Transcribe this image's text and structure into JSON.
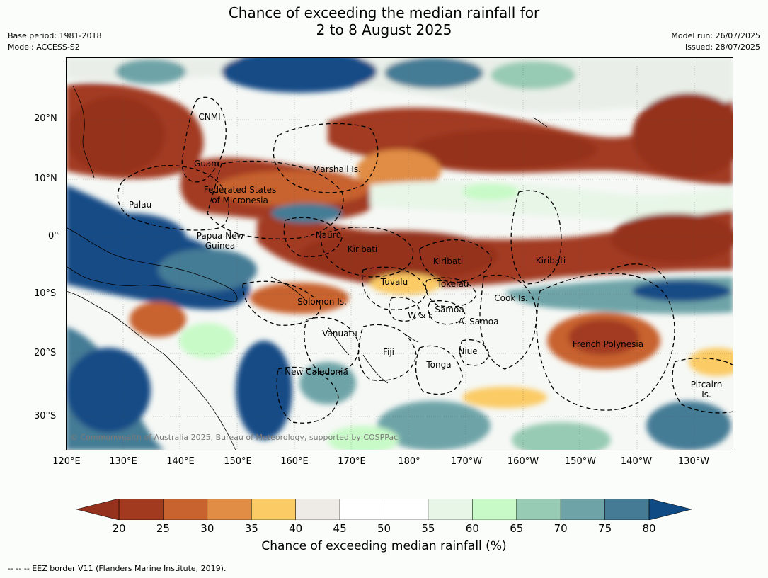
{
  "title_line1": "Chance of exceeding the median rainfall for",
  "title_line2": "2 to 8 August 2025",
  "meta_left": {
    "base_period": "Base period: 1981-2018",
    "model": "Model: ACCESS-S2"
  },
  "meta_right": {
    "model_run": "Model run: 26/07/2025",
    "issued": "Issued: 28/07/2025"
  },
  "lat_ticks": [
    "20°N",
    "10°N",
    "0°",
    "10°S",
    "20°S",
    "30°S"
  ],
  "lon_ticks": [
    "120°E",
    "130°E",
    "140°E",
    "150°E",
    "160°E",
    "170°E",
    "180°",
    "170°W",
    "160°W",
    "150°W",
    "140°W",
    "130°W"
  ],
  "regions": {
    "cnmi": "CNMI",
    "guam": "Guam",
    "marshall": "Marshall Is.",
    "fsm_line1": "Federated States",
    "fsm_line2": "of Micronesia",
    "palau": "Palau",
    "png_line1": "Papua New",
    "png_line2": "Guinea",
    "nauru": "Nauru",
    "kiribati_west": "Kiribati",
    "kiribati_central": "Kiribati",
    "kiribati_east": "Kiribati",
    "tuvalu": "Tuvalu",
    "tokelau": "Tokelau",
    "cook": "Cook Is.",
    "solomon": "Solomon Is.",
    "wf": "W & F",
    "samoa": "Samoa",
    "asamoa": "A. Samoa",
    "vanuatu": "Vanuatu",
    "fiji": "Fiji",
    "niue": "Niue",
    "tonga": "Tonga",
    "french_polynesia": "French Polynesia",
    "new_caledonia": "New Caledonia",
    "pitcairn_line1": "Pitcairn",
    "pitcairn_line2": "Is."
  },
  "copyright": "© Commonwealth of Australia 2025, Bureau of Meteorology, supported by COSPPac",
  "colorbar": {
    "ticks": [
      "20",
      "25",
      "30",
      "35",
      "40",
      "45",
      "50",
      "55",
      "60",
      "65",
      "70",
      "75",
      "80"
    ],
    "colors": [
      "#a23a20",
      "#c8622f",
      "#e18d45",
      "#fbcb65",
      "#eeebe6",
      "#ffffff",
      "#ffffff",
      "#e8f6e8",
      "#c8fac7",
      "#98cbb3",
      "#6ea4a8",
      "#457b95",
      "#134c86"
    ],
    "low_color": "#95321e",
    "high_color": "#0f4a84",
    "label": "Chance of exceeding median rainfall (%)"
  },
  "footnote": "--  --  -- EEZ border V11 (Flanders Marine Institute, 2019)."
}
